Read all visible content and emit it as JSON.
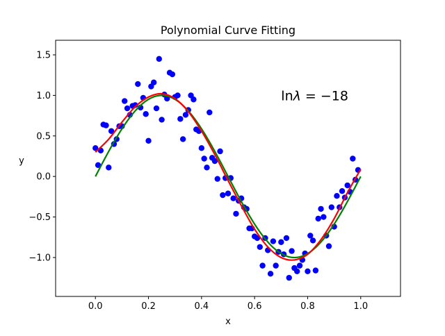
{
  "chart_data": {
    "type": "scatter",
    "title": "Polynomial Curve Fitting",
    "xlabel": "x",
    "ylabel": "y",
    "xlim": [
      -0.15,
      1.15
    ],
    "ylim": [
      -1.48,
      1.68
    ],
    "grid": false,
    "legend": "none",
    "x_ticks": [
      0.0,
      0.2,
      0.4,
      0.6,
      0.8,
      1.0
    ],
    "x_tick_labels": [
      "0.0",
      "0.2",
      "0.4",
      "0.6",
      "0.8",
      "1.0"
    ],
    "y_ticks": [
      -1.0,
      -0.5,
      0.0,
      0.5,
      1.0,
      1.5
    ],
    "y_tick_labels": [
      "−1.0",
      "−0.5",
      "0.0",
      "0.5",
      "1.0",
      "1.5"
    ],
    "annotation": {
      "prefix": "ln",
      "symbol": "λ",
      "suffix": " = −18",
      "x": 0.7,
      "y": 1.0
    },
    "series": [
      {
        "type": "scatter",
        "color": "#0000ff",
        "points": [
          [
            0.0,
            0.35
          ],
          [
            0.01,
            0.14
          ],
          [
            0.02,
            0.32
          ],
          [
            0.03,
            0.64
          ],
          [
            0.04,
            0.63
          ],
          [
            0.05,
            0.11
          ],
          [
            0.06,
            0.56
          ],
          [
            0.07,
            0.4
          ],
          [
            0.08,
            0.46
          ],
          [
            0.09,
            0.62
          ],
          [
            0.1,
            0.62
          ],
          [
            0.11,
            0.93
          ],
          [
            0.12,
            0.84
          ],
          [
            0.13,
            0.76
          ],
          [
            0.14,
            0.87
          ],
          [
            0.15,
            0.88
          ],
          [
            0.16,
            1.14
          ],
          [
            0.17,
            0.85
          ],
          [
            0.18,
            0.97
          ],
          [
            0.19,
            0.77
          ],
          [
            0.2,
            0.44
          ],
          [
            0.21,
            1.11
          ],
          [
            0.22,
            1.16
          ],
          [
            0.23,
            0.84
          ],
          [
            0.24,
            1.45
          ],
          [
            0.25,
            0.7
          ],
          [
            0.26,
            1.01
          ],
          [
            0.27,
            0.96
          ],
          [
            0.28,
            1.28
          ],
          [
            0.29,
            1.26
          ],
          [
            0.3,
            0.98
          ],
          [
            0.31,
            1.0
          ],
          [
            0.32,
            0.71
          ],
          [
            0.33,
            0.46
          ],
          [
            0.34,
            0.76
          ],
          [
            0.35,
            0.82
          ],
          [
            0.36,
            1.0
          ],
          [
            0.37,
            0.95
          ],
          [
            0.38,
            0.58
          ],
          [
            0.39,
            0.56
          ],
          [
            0.4,
            0.35
          ],
          [
            0.41,
            0.22
          ],
          [
            0.42,
            0.11
          ],
          [
            0.43,
            0.79
          ],
          [
            0.44,
            0.23
          ],
          [
            0.45,
            0.19
          ],
          [
            0.46,
            -0.03
          ],
          [
            0.47,
            0.31
          ],
          [
            0.48,
            -0.23
          ],
          [
            0.49,
            -0.02
          ],
          [
            0.5,
            -0.21
          ],
          [
            0.51,
            -0.02
          ],
          [
            0.52,
            -0.27
          ],
          [
            0.53,
            -0.46
          ],
          [
            0.54,
            -0.3
          ],
          [
            0.55,
            -0.27
          ],
          [
            0.56,
            -0.38
          ],
          [
            0.57,
            -0.4
          ],
          [
            0.58,
            -0.64
          ],
          [
            0.59,
            -0.64
          ],
          [
            0.6,
            -0.74
          ],
          [
            0.61,
            -0.76
          ],
          [
            0.62,
            -0.87
          ],
          [
            0.63,
            -1.1
          ],
          [
            0.64,
            -0.76
          ],
          [
            0.65,
            -0.91
          ],
          [
            0.66,
            -1.2
          ],
          [
            0.67,
            -0.8
          ],
          [
            0.68,
            -1.1
          ],
          [
            0.69,
            -0.93
          ],
          [
            0.7,
            -0.81
          ],
          [
            0.71,
            -0.96
          ],
          [
            0.72,
            -0.76
          ],
          [
            0.73,
            -1.25
          ],
          [
            0.74,
            -0.92
          ],
          [
            0.75,
            -1.13
          ],
          [
            0.76,
            -1.17
          ],
          [
            0.77,
            -1.1
          ],
          [
            0.78,
            -1.03
          ],
          [
            0.79,
            -0.95
          ],
          [
            0.8,
            -1.17
          ],
          [
            0.81,
            -0.73
          ],
          [
            0.82,
            -0.79
          ],
          [
            0.83,
            -1.16
          ],
          [
            0.84,
            -0.52
          ],
          [
            0.85,
            -0.4
          ],
          [
            0.86,
            -0.5
          ],
          [
            0.87,
            -0.73
          ],
          [
            0.88,
            -0.86
          ],
          [
            0.89,
            -0.38
          ],
          [
            0.9,
            -0.62
          ],
          [
            0.91,
            -0.24
          ],
          [
            0.92,
            -0.38
          ],
          [
            0.93,
            -0.18
          ],
          [
            0.94,
            -0.26
          ],
          [
            0.95,
            -0.11
          ],
          [
            0.96,
            -0.19
          ],
          [
            0.97,
            0.22
          ],
          [
            0.98,
            -0.04
          ],
          [
            0.99,
            0.08
          ]
        ]
      },
      {
        "type": "line",
        "color": "#008000",
        "function": "sin(2πx)",
        "x_range": [
          0.0,
          1.0
        ]
      },
      {
        "type": "line",
        "color": "#ff0000",
        "x_range": [
          0.0,
          1.0
        ],
        "points": [
          [
            0.0,
            0.3
          ],
          [
            0.05,
            0.46
          ],
          [
            0.1,
            0.67
          ],
          [
            0.15,
            0.86
          ],
          [
            0.2,
            0.98
          ],
          [
            0.25,
            1.02
          ],
          [
            0.3,
            0.96
          ],
          [
            0.35,
            0.8
          ],
          [
            0.4,
            0.56
          ],
          [
            0.45,
            0.27
          ],
          [
            0.5,
            -0.05
          ],
          [
            0.55,
            -0.36
          ],
          [
            0.6,
            -0.65
          ],
          [
            0.65,
            -0.87
          ],
          [
            0.7,
            -1.0
          ],
          [
            0.75,
            -1.03
          ],
          [
            0.8,
            -0.96
          ],
          [
            0.85,
            -0.78
          ],
          [
            0.9,
            -0.52
          ],
          [
            0.95,
            -0.2
          ],
          [
            1.0,
            0.09
          ]
        ]
      }
    ]
  }
}
